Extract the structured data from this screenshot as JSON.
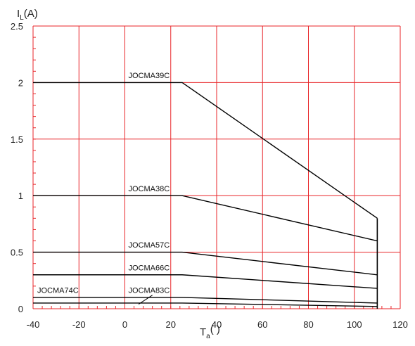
{
  "chart_data": {
    "type": "line",
    "title": "",
    "ylabel": {
      "main": "I",
      "sub": "L",
      "suffix": "(A)"
    },
    "xlabel": {
      "main": "T",
      "sub": "a",
      "suffix": "(     )"
    },
    "xlim": [
      -40,
      120
    ],
    "ylim": [
      0,
      2.5
    ],
    "xticks": [
      -40,
      -20,
      0,
      20,
      40,
      60,
      80,
      100,
      120
    ],
    "xtick_labels": [
      "-40",
      "-20",
      "0",
      "20",
      "40",
      "60",
      "80",
      "100",
      "120"
    ],
    "yticks": [
      0,
      0.5,
      1,
      1.5,
      2,
      2.5
    ],
    "ytick_labels": [
      "0",
      "0.5",
      "1",
      "1.5",
      "2",
      "2.5"
    ],
    "grid": true,
    "colors": {
      "grid": "#e8262a",
      "line": "#000000",
      "text": "#222222"
    },
    "series": [
      {
        "name": "JOCMA39C",
        "x": [
          -40,
          25,
          110
        ],
        "y": [
          2.0,
          2.0,
          0.8
        ]
      },
      {
        "name": "JOCMA38C",
        "x": [
          -40,
          25,
          110
        ],
        "y": [
          1.0,
          1.0,
          0.6
        ]
      },
      {
        "name": "JOCMA57C",
        "x": [
          -40,
          25,
          110
        ],
        "y": [
          0.5,
          0.5,
          0.3
        ]
      },
      {
        "name": "JOCMA66C",
        "x": [
          -40,
          25,
          110
        ],
        "y": [
          0.3,
          0.3,
          0.18
        ]
      },
      {
        "name": "JOCMA74C",
        "x": [
          -40,
          25,
          110
        ],
        "y": [
          0.1,
          0.1,
          0.05
        ]
      },
      {
        "name": "JOCMA83C",
        "x": [
          -40,
          25,
          110
        ],
        "y": [
          0.05,
          0.05,
          0.02
        ]
      }
    ],
    "vertical_line": {
      "x": 110,
      "y": [
        0,
        0.8
      ]
    },
    "annotations": [
      {
        "text": "JOCMA39C",
        "x": 0,
        "y": 2.04
      },
      {
        "text": "JOCMA38C",
        "x": 0,
        "y": 1.04
      },
      {
        "text": "JOCMA57C",
        "x": 0,
        "y": 0.54
      },
      {
        "text": "JOCMA66C",
        "x": 0,
        "y": 0.34
      },
      {
        "text": "JOCMA74C",
        "x": -40,
        "y": 0.14
      },
      {
        "text": "JOCMA83C",
        "x": 0,
        "y": 0.14
      }
    ]
  }
}
